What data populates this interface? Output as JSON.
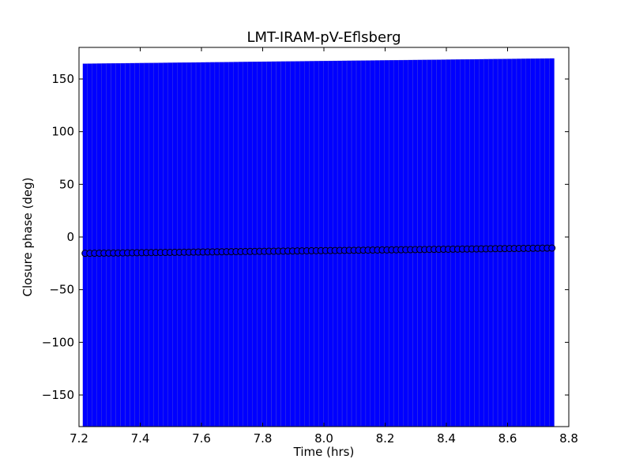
{
  "chart_data": {
    "type": "scatter",
    "title": "LMT-IRAM-pV-Eflsberg",
    "xlabel": "Time (hrs)",
    "ylabel": "Closure phase (deg)",
    "xlim": [
      7.2,
      8.8
    ],
    "ylim": [
      -180,
      180
    ],
    "xticks": [
      7.2,
      7.4,
      7.6,
      7.8,
      8.0,
      8.2,
      8.4,
      8.6,
      8.8
    ],
    "xtick_labels": [
      "7.2",
      "7.4",
      "7.6",
      "7.8",
      "8.0",
      "8.2",
      "8.4",
      "8.6",
      "8.8"
    ],
    "yticks": [
      150,
      100,
      50,
      0,
      -50,
      -100,
      -150
    ],
    "ytick_labels": [
      "150",
      "100",
      "50",
      "0",
      "−50",
      "−100",
      "−150"
    ],
    "grid": false,
    "error_band_color": "#0000ff",
    "marker_color": "#0000ff",
    "marker_edge_color": "#000000",
    "series": [
      {
        "x_start": 7.22,
        "x_end": 8.745,
        "n_points": 100,
        "y_start": -15.5,
        "y_end": -10.5,
        "y_error": 180
      }
    ]
  }
}
